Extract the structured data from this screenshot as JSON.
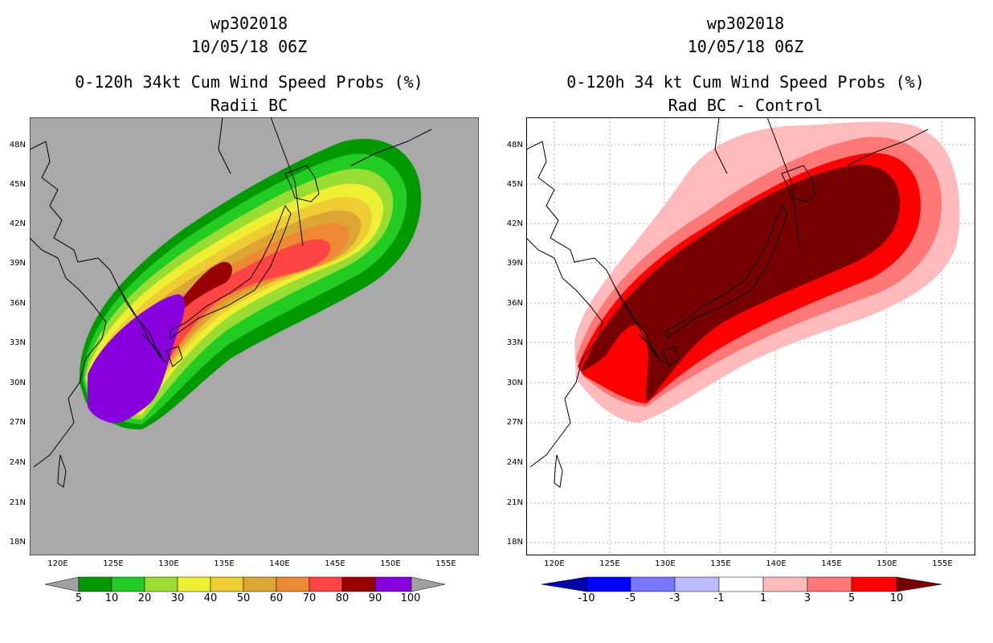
{
  "left_panel": {
    "storm_id": "wp302018",
    "datetime": "10/05/18 06Z",
    "title": "0-120h 34kt Cum Wind Speed Probs (%)",
    "subtitle": "Radii BC",
    "lat_labels": [
      "48N",
      "45N",
      "42N",
      "39N",
      "36N",
      "33N",
      "30N",
      "27N",
      "24N",
      "21N",
      "18N"
    ],
    "lon_labels": [
      "120E",
      "125E",
      "130E",
      "135E",
      "140E",
      "145E",
      "150E",
      "155E"
    ],
    "colorbar": {
      "labels": [
        "5",
        "10",
        "20",
        "30",
        "40",
        "50",
        "60",
        "70",
        "80",
        "90",
        "100"
      ],
      "colors": [
        "#009900",
        "#22cc22",
        "#99dd33",
        "#eeee33",
        "#eecc33",
        "#dda533",
        "#ee8833",
        "#ff4444",
        "#990000",
        "#8800dd"
      ],
      "end_colors": [
        "#a0a0a0",
        "#a0a0a0"
      ]
    }
  },
  "right_panel": {
    "storm_id": "wp302018",
    "datetime": "10/05/18 06Z",
    "title": "0-120h 34 kt Cum Wind Speed Probs (%)",
    "subtitle": "Rad BC - Control",
    "lat_labels": [
      "48N",
      "45N",
      "42N",
      "39N",
      "36N",
      "33N",
      "30N",
      "27N",
      "24N",
      "21N",
      "18N"
    ],
    "lon_labels": [
      "120E",
      "125E",
      "130E",
      "135E",
      "140E",
      "145E",
      "150E",
      "155E"
    ],
    "colorbar": {
      "labels": [
        "-10",
        "-5",
        "-3",
        "-1",
        "1",
        "3",
        "5",
        "10"
      ],
      "colors": [
        "#0000ff",
        "#7777ff",
        "#bbbbff",
        "#ffffff",
        "#ffbbbb",
        "#ff7777",
        "#ff0000"
      ],
      "end_colors": [
        "#0000aa",
        "#770000"
      ]
    }
  }
}
